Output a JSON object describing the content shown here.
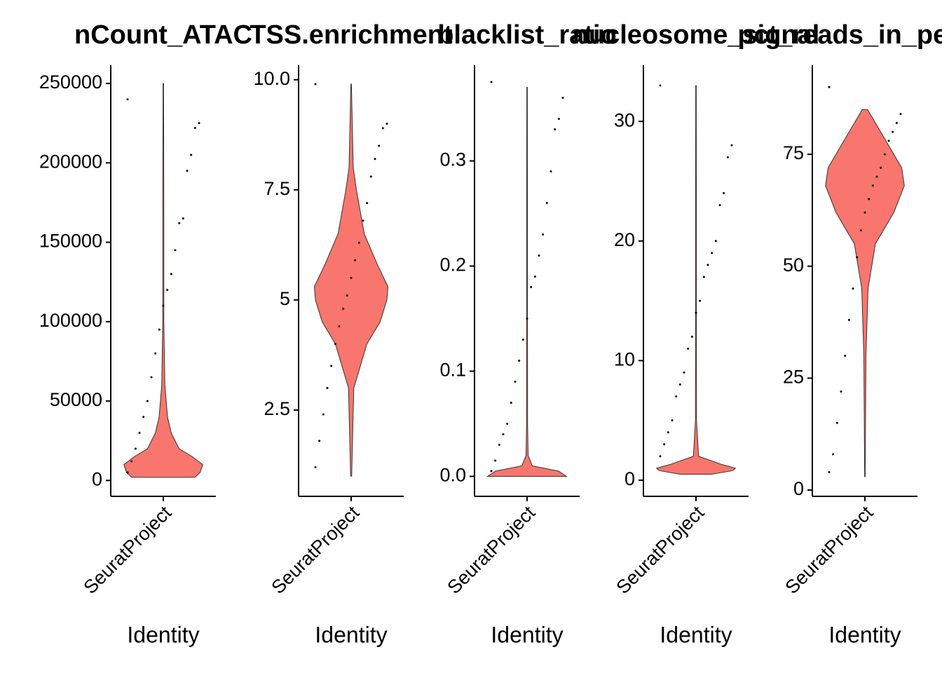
{
  "chart_data": [
    {
      "type": "violin",
      "title": "nCount_ATAC",
      "categories": [
        "SeuratProject"
      ],
      "xlabel": "Identity",
      "color": "#F8766D",
      "ylim": [
        -10000,
        261500
      ],
      "yticks": [
        0,
        50000,
        100000,
        150000,
        200000,
        250000
      ],
      "violin": {
        "y": [
          2000,
          5000,
          10000,
          15000,
          20000,
          30000,
          40000,
          60000,
          100000,
          165000,
          250000
        ],
        "width": [
          0.6,
          0.7,
          0.75,
          0.55,
          0.3,
          0.15,
          0.08,
          0.03,
          0.01,
          0.01,
          0.005
        ]
      },
      "points": [
        240000,
        225000,
        222000,
        205000,
        195000,
        165000,
        162000,
        145000,
        130000,
        120000,
        110000,
        95000,
        80000,
        65000,
        50000,
        40000,
        30000,
        20000,
        12000,
        5000
      ]
    },
    {
      "type": "violin",
      "title": "TSS.enrichment",
      "categories": [
        "SeuratProject"
      ],
      "xlabel": "Identity",
      "color": "#F8766D",
      "ylim": [
        0.54,
        10.33
      ],
      "yticks": [
        2.5,
        5,
        7.5,
        {
          "value": 10,
          "label": "10.0"
        }
      ],
      "violin": {
        "y": [
          1.0,
          3,
          4,
          4.5,
          5,
          5.3,
          5.8,
          6.5,
          7.5,
          8,
          9.9
        ],
        "width": [
          0.01,
          0.05,
          0.3,
          0.55,
          0.68,
          0.7,
          0.5,
          0.25,
          0.1,
          0.04,
          0.005
        ]
      },
      "points": [
        9.9,
        9.0,
        8.9,
        8.5,
        8.2,
        7.8,
        7.2,
        6.8,
        6.3,
        5.9,
        5.5,
        5.1,
        4.8,
        4.4,
        4.0,
        3.5,
        3.0,
        2.4,
        1.8,
        1.2
      ]
    },
    {
      "type": "violin",
      "title": "blacklist_ratio",
      "categories": [
        "SeuratProject"
      ],
      "xlabel": "Identity",
      "color": "#F8766D",
      "ylim": [
        -0.019,
        0.391
      ],
      "yticks": [
        {
          "value": 0,
          "label": "0.0"
        },
        0.1,
        0.2,
        0.3
      ],
      "violin": {
        "y": [
          0,
          0.005,
          0.01,
          0.02,
          0.05,
          0.37
        ],
        "width": [
          0.75,
          0.6,
          0.1,
          0.02,
          0.01,
          0.005
        ]
      },
      "points": [
        0.375,
        0.36,
        0.34,
        0.33,
        0.29,
        0.26,
        0.23,
        0.21,
        0.19,
        0.18,
        0.15,
        0.13,
        0.11,
        0.09,
        0.07,
        0.05,
        0.04,
        0.03,
        0.015,
        0.005
      ]
    },
    {
      "type": "violin",
      "title": "nucleosome_signal",
      "categories": [
        "SeuratProject"
      ],
      "xlabel": "Identity",
      "color": "#F8766D",
      "ylim": [
        -1.35,
        34.7
      ],
      "yticks": [
        0,
        10,
        20,
        30
      ],
      "violin": {
        "y": [
          0.5,
          0.8,
          1.0,
          1.3,
          2,
          5,
          33
        ],
        "width": [
          0.3,
          0.7,
          0.75,
          0.5,
          0.05,
          0.01,
          0.005
        ]
      },
      "points": [
        33,
        28,
        27,
        24,
        23,
        20,
        19,
        18,
        17,
        15,
        14,
        12,
        11,
        9,
        8,
        7,
        5,
        4,
        3,
        2
      ]
    },
    {
      "type": "violin",
      "title": "pct_reads_in_peaks",
      "categories": [
        "SeuratProject"
      ],
      "xlabel": "Identity",
      "color": "#F8766D",
      "ylim": [
        -1.4,
        94.9
      ],
      "yticks": [
        0,
        25,
        50,
        75
      ],
      "violin": {
        "y": [
          3,
          30,
          45,
          55,
          62,
          68,
          72,
          78,
          82,
          85
        ],
        "width": [
          0.005,
          0.02,
          0.06,
          0.2,
          0.55,
          0.75,
          0.7,
          0.4,
          0.2,
          0.05
        ]
      },
      "points": [
        90,
        84,
        82,
        80,
        78,
        75,
        72,
        70,
        68,
        65,
        62,
        58,
        52,
        45,
        38,
        30,
        22,
        15,
        8,
        4
      ]
    }
  ]
}
